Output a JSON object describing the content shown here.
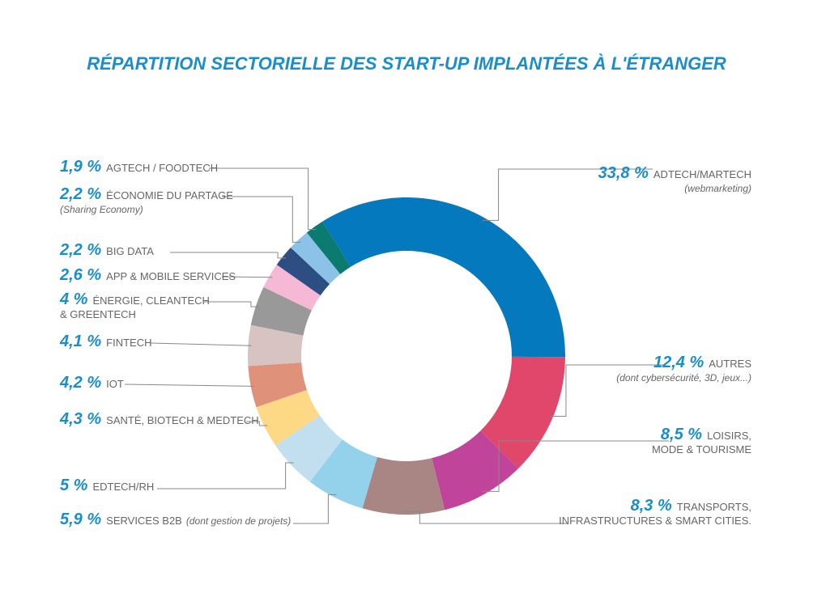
{
  "chart_data": {
    "type": "pie",
    "title": "RÉPARTITION SECTORIELLE DES START-UP IMPLANTÉES À L'ÉTRANGER",
    "accent_color": "#1a8dcb",
    "label_color": "#666666",
    "slices": [
      {
        "pct_label": "33,8 %",
        "value": 33.8,
        "label": "ADTECH/MARTECH",
        "sub": "(webmarketing)",
        "color": "#0479bd"
      },
      {
        "pct_label": "12,4 %",
        "value": 12.4,
        "label": "AUTRES",
        "sub": "(dont cybersécurité, 3D, jeux...)",
        "color": "#e0476b"
      },
      {
        "pct_label": "8,5 %",
        "value": 8.5,
        "label": "LOISIRS,",
        "label2": "MODE & TOURISME",
        "color": "#c1449b"
      },
      {
        "pct_label": "8,3 %",
        "value": 8.3,
        "label": "TRANSPORTS,",
        "label2": "INFRASTRUCTURES & SMART CITIES.",
        "color": "#a98683"
      },
      {
        "pct_label": "5,9 %",
        "value": 5.9,
        "label": "SERVICES B2B",
        "sub": "(dont gestion de projets)",
        "color": "#93d2ea"
      },
      {
        "pct_label": "5 %",
        "value": 5.0,
        "label": "EDTECH/RH",
        "color": "#c2dff0"
      },
      {
        "pct_label": "4,3 %",
        "value": 4.3,
        "label": "SANTÉ, BIOTECH & MEDTECH",
        "color": "#fdd985"
      },
      {
        "pct_label": "4,2 %",
        "value": 4.2,
        "label": "IOT",
        "color": "#df917a"
      },
      {
        "pct_label": "4,1 %",
        "value": 4.1,
        "label": "FINTECH",
        "color": "#d7c3c1"
      },
      {
        "pct_label": "4 %",
        "value": 4.0,
        "label": "ÉNERGIE, CLEANTECH",
        "label2": "& GREENTECH",
        "color": "#999999"
      },
      {
        "pct_label": "2,6 %",
        "value": 2.6,
        "label": "APP & MOBILE SERVICES",
        "color": "#f5b8d5"
      },
      {
        "pct_label": "2,2 %",
        "value": 2.2,
        "label": "BIG DATA",
        "color": "#2c4e82"
      },
      {
        "pct_label": "2,2 %",
        "value": 2.2,
        "label": "ÉCONOMIE DU PARTAGE",
        "sub": "(Sharing Economy)",
        "color": "#8cc2e8"
      },
      {
        "pct_label": "1,9 %",
        "value": 1.9,
        "label": "AGTECH / FOODTECH",
        "color": "#0a7b6e"
      }
    ]
  }
}
